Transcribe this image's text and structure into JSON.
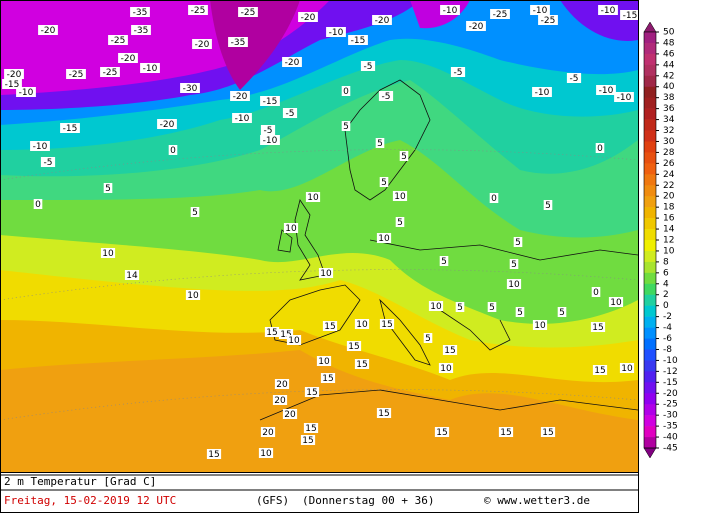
{
  "map": {
    "footer": {
      "variable": "2 m Temperatur [Grad C]",
      "date": "Freitag, 15-02-2019  12 UTC",
      "model": "(GFS)",
      "run": "(Donnerstag 00 + 36)",
      "source": "© www.wetter3.de"
    },
    "legend": {
      "levels": [
        50,
        48,
        46,
        44,
        42,
        40,
        38,
        36,
        34,
        32,
        30,
        28,
        26,
        24,
        22,
        20,
        18,
        16,
        14,
        12,
        10,
        8,
        6,
        4,
        2,
        0,
        -2,
        -4,
        -6,
        -8,
        -10,
        -12,
        -15,
        -20,
        -25,
        -30,
        -35,
        -40,
        -45
      ],
      "colors": [
        "#8c1a6e",
        "#a02080",
        "#b02a7a",
        "#c03070",
        "#b03060",
        "#a02848",
        "#902020",
        "#a02020",
        "#b02020",
        "#c02818",
        "#d03018",
        "#e04010",
        "#e85010",
        "#f06010",
        "#f07810",
        "#f08c10",
        "#f0a010",
        "#f0b400",
        "#f0c800",
        "#f0dc00",
        "#f0f000",
        "#d0ec20",
        "#a8e430",
        "#70dc40",
        "#40d860",
        "#20d0a0",
        "#00c8d0",
        "#00b0f0",
        "#0090ff",
        "#0070ff",
        "#2050ff",
        "#3838f0",
        "#5020f0",
        "#7010f0",
        "#9000f0",
        "#b000e8",
        "#d000e0",
        "#e000c0",
        "#b000a0",
        "#800080"
      ]
    },
    "contour_labels": [
      -35,
      -25,
      -25,
      -20,
      -20,
      -25,
      -35,
      -20,
      -35,
      -20,
      -10,
      -20,
      -20,
      -25,
      -25,
      -30,
      -15,
      -10,
      -20,
      -15,
      -5,
      -10,
      -20,
      -15,
      -10,
      -5,
      0,
      -5,
      -10,
      5,
      -10,
      -15,
      -20,
      -10,
      -20,
      -25,
      -10,
      -25,
      -10,
      -15,
      -5,
      0,
      -5,
      -5,
      -10,
      -10,
      -10,
      -5,
      5,
      0,
      5,
      10,
      14,
      10,
      10,
      10,
      5,
      5,
      0,
      0,
      5,
      10,
      5,
      10,
      10,
      5,
      5,
      5,
      10,
      0,
      5,
      10,
      15,
      15,
      10,
      10,
      15,
      10,
      15,
      15,
      5,
      5,
      5,
      5,
      10,
      15,
      10,
      5,
      10,
      15,
      15,
      20,
      20,
      15,
      20,
      20,
      10,
      15,
      15,
      15,
      15,
      15,
      15,
      15,
      15,
      15,
      10
    ]
  }
}
